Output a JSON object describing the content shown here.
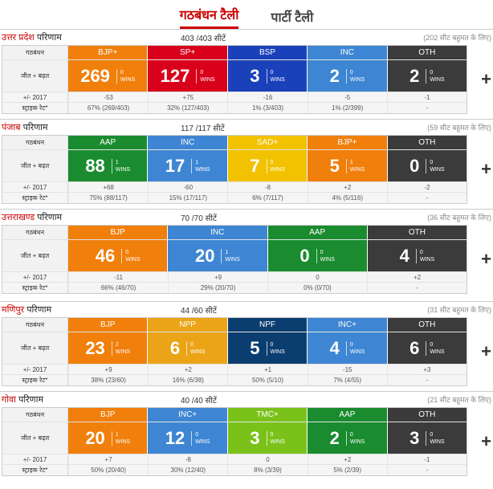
{
  "tabs": [
    "गठबंधन टैली",
    "पार्टी टैली"
  ],
  "labels": {
    "alliance": "गठबंधन",
    "win_lead": "जीत + बढ़त",
    "change": "+/- 2017",
    "strike": "स्ट्राइक रेट*"
  },
  "states": [
    {
      "name": "उत्तर प्रदेश",
      "result": "परिणाम",
      "seats": "403 /403 सीटें",
      "majority": "(202 सीट बहुमत के लिए)",
      "parties": [
        {
          "name": "BJP+",
          "color": "#f07f0b",
          "count": "269",
          "w1": "0",
          "w2": "WINS",
          "change": "-53",
          "strike": "67% (269/403)"
        },
        {
          "name": "SP+",
          "color": "#d9001b",
          "count": "127",
          "w1": "0",
          "w2": "WINS",
          "change": "+75",
          "strike": "32% (127/403)"
        },
        {
          "name": "BSP",
          "color": "#1a41b9",
          "count": "3",
          "w1": "0",
          "w2": "WINS",
          "change": "-16",
          "strike": "1% (3/403)"
        },
        {
          "name": "INC",
          "color": "#3e86d3",
          "count": "2",
          "w1": "0",
          "w2": "WINS",
          "change": "-5",
          "strike": "1% (2/399)"
        },
        {
          "name": "OTH",
          "color": "#3b3b3b",
          "count": "2",
          "w1": "0",
          "w2": "WINS",
          "change": "-1",
          "strike": "-"
        }
      ]
    },
    {
      "name": "पंजाब",
      "result": "परिणाम",
      "seats": "117 /117 सीटें",
      "majority": "(59 सीट बहुमत के लिए)",
      "parties": [
        {
          "name": "AAP",
          "color": "#1a8c2f",
          "count": "88",
          "w1": "1",
          "w2": "WINS",
          "change": "+68",
          "strike": "75% (88/117)"
        },
        {
          "name": "INC",
          "color": "#3e86d3",
          "count": "17",
          "w1": "1",
          "w2": "WINS",
          "change": "-60",
          "strike": "15% (17/117)"
        },
        {
          "name": "SAD+",
          "color": "#f2c200",
          "count": "7",
          "w1": "0",
          "w2": "WINS",
          "change": "-8",
          "strike": "6% (7/117)"
        },
        {
          "name": "BJP+",
          "color": "#f07f0b",
          "count": "5",
          "w1": "1",
          "w2": "WINS",
          "change": "+2",
          "strike": "4% (5/116)"
        },
        {
          "name": "OTH",
          "color": "#3b3b3b",
          "count": "0",
          "w1": "0",
          "w2": "WINS",
          "change": "-2",
          "strike": "-"
        }
      ]
    },
    {
      "name": "उत्तराखण्ड",
      "result": "परिणाम",
      "seats": "70 /70 सीटें",
      "majority": "(36 सीट बहुमत के लिए)",
      "parties": [
        {
          "name": "BJP",
          "color": "#f07f0b",
          "count": "46",
          "w1": "0",
          "w2": "WINS",
          "change": "-11",
          "strike": "66% (46/70)"
        },
        {
          "name": "INC",
          "color": "#3e86d3",
          "count": "20",
          "w1": "1",
          "w2": "WINS",
          "change": "+9",
          "strike": "29% (20/70)"
        },
        {
          "name": "AAP",
          "color": "#1a8c2f",
          "count": "0",
          "w1": "0",
          "w2": "WINS",
          "change": "0",
          "strike": "0% (0/70)"
        },
        {
          "name": "OTH",
          "color": "#3b3b3b",
          "count": "4",
          "w1": "0",
          "w2": "WINS",
          "change": "+2",
          "strike": "-"
        }
      ]
    },
    {
      "name": "मणिपुर",
      "result": "परिणाम",
      "seats": "44 /60 सीटें",
      "majority": "(31 सीट बहुमत के लिए)",
      "parties": [
        {
          "name": "BJP",
          "color": "#f07f0b",
          "count": "23",
          "w1": "2",
          "w2": "WINS",
          "change": "+9",
          "strike": "38% (23/60)"
        },
        {
          "name": "NPP",
          "color": "#eba417",
          "count": "6",
          "w1": "0",
          "w2": "WINS",
          "change": "+2",
          "strike": "16% (6/38)"
        },
        {
          "name": "NPF",
          "color": "#0c3d70",
          "count": "5",
          "w1": "0",
          "w2": "WINS",
          "change": "+1",
          "strike": "50% (5/10)"
        },
        {
          "name": "INC+",
          "color": "#3e86d3",
          "count": "4",
          "w1": "0",
          "w2": "WINS",
          "change": "-15",
          "strike": "7% (4/55)"
        },
        {
          "name": "OTH",
          "color": "#3b3b3b",
          "count": "6",
          "w1": "0",
          "w2": "WINS",
          "change": "+3",
          "strike": "-"
        }
      ]
    },
    {
      "name": "गोवा",
      "result": "परिणाम",
      "seats": "40 /40 सीटें",
      "majority": "(21 सीट बहुमत के लिए)",
      "parties": [
        {
          "name": "BJP",
          "color": "#f07f0b",
          "count": "20",
          "w1": "1",
          "w2": "WINS",
          "change": "+7",
          "strike": "50% (20/40)"
        },
        {
          "name": "INC+",
          "color": "#3e86d3",
          "count": "12",
          "w1": "0",
          "w2": "WINS",
          "change": "-8",
          "strike": "30% (12/40)"
        },
        {
          "name": "TMC+",
          "color": "#7ac21a",
          "count": "3",
          "w1": "0",
          "w2": "WINS",
          "change": "0",
          "strike": "8% (3/39)"
        },
        {
          "name": "AAP",
          "color": "#1a8c2f",
          "count": "2",
          "w1": "0",
          "w2": "WINS",
          "change": "+2",
          "strike": "5% (2/39)"
        },
        {
          "name": "OTH",
          "color": "#3b3b3b",
          "count": "3",
          "w1": "0",
          "w2": "WINS",
          "change": "-1",
          "strike": "-"
        }
      ]
    }
  ],
  "plus_label": "+"
}
